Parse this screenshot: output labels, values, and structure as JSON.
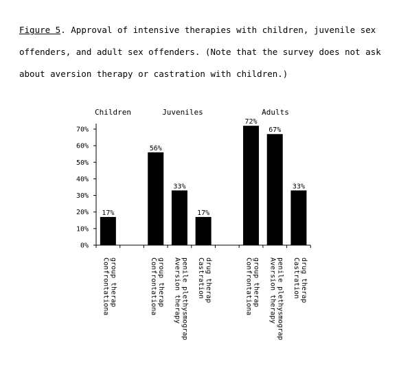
{
  "caption": {
    "figure_label": "Figure 5",
    "text": ". Approval of intensive therapies with children, juvenile sex offenders, and adult sex offenders. (Note that the survey does not ask about aversion therapy or castration with children.)"
  },
  "chart_data": {
    "type": "bar",
    "title": "",
    "xlabel": "",
    "ylabel": "",
    "ylim": [
      0,
      70
    ],
    "yticks": [
      "0%",
      "10%",
      "20%",
      "30%",
      "40%",
      "50%",
      "60%",
      "70%"
    ],
    "legend": "none",
    "bar_color": "#000000",
    "groups": [
      {
        "name": "Children",
        "bars": [
          {
            "category": [
              "Confrontationa",
              "group therap"
            ],
            "value": 17,
            "label": "17%"
          }
        ]
      },
      {
        "name": "Juveniles",
        "bars": [
          {
            "category": [
              "Confrontationa",
              "group therap"
            ],
            "value": 56,
            "label": "56%"
          },
          {
            "category": [
              "Aversion therapy",
              "penile plethysmograp"
            ],
            "value": 33,
            "label": "33%"
          },
          {
            "category": [
              "Castration",
              "drug therap"
            ],
            "value": 17,
            "label": "17%"
          }
        ]
      },
      {
        "name": "Adults",
        "bars": [
          {
            "category": [
              "Confrontationa",
              "group therap"
            ],
            "value": 72,
            "label": "72%"
          },
          {
            "category": [
              "Aversion therapy",
              "penile plethysmograp"
            ],
            "value": 67,
            "label": "67%"
          },
          {
            "category": [
              "Castration",
              "drug therap"
            ],
            "value": 33,
            "label": "33%"
          }
        ]
      }
    ]
  }
}
